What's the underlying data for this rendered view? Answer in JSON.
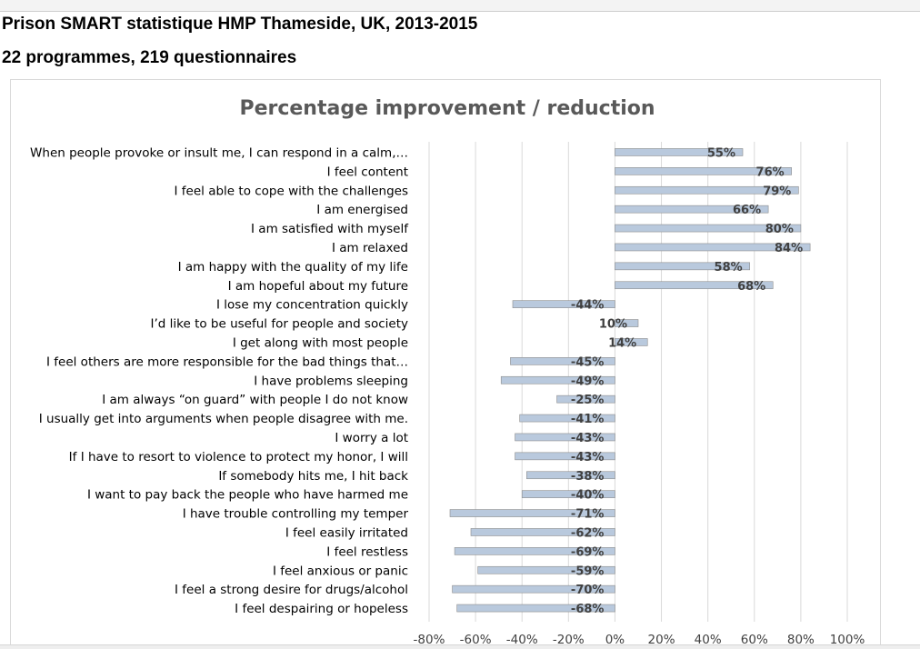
{
  "header": {
    "title": "Prison SMART statistique HMP Thameside, UK, 2013-2015",
    "subtitle": "22 programmes, 219 questionnaires"
  },
  "chart_data": {
    "type": "bar",
    "orientation": "horizontal",
    "title": "Percentage improvement / reduction",
    "xlim": [
      -80,
      100
    ],
    "xticks": [
      -80,
      -60,
      -40,
      -20,
      0,
      20,
      40,
      60,
      80,
      100
    ],
    "tick_suffix": "%",
    "grid": true,
    "legend": "none",
    "bar_color": "#b9c9dd",
    "bar_border": "#8c8c8c",
    "categories": [
      "When people provoke or insult me, I can respond in a calm,…",
      "I feel content",
      "I feel able to cope with the challenges",
      "I am energised",
      "I am satisfied with myself",
      "I am relaxed",
      "I am happy with the quality of my life",
      "I am hopeful about my future",
      "I lose my concentration quickly",
      "I’d like to be useful for people and society",
      "I get along with most people",
      "I feel others are more responsible for the bad things that…",
      "I have problems sleeping",
      "I am always “on guard” with people I do not know",
      "I usually get into arguments when people disagree with me.",
      "I worry a lot",
      "If I have to resort to violence to protect my honor, I will",
      "If somebody hits me, I hit back",
      "I want to pay back the people who have harmed me",
      "I have trouble controlling my temper",
      "I feel easily irritated",
      "I feel restless",
      "I feel anxious or panic",
      "I feel a strong desire for drugs/alcohol",
      "I feel despairing or hopeless"
    ],
    "values": [
      55,
      76,
      79,
      66,
      80,
      84,
      58,
      68,
      -44,
      10,
      14,
      -45,
      -49,
      -25,
      -41,
      -43,
      -43,
      -38,
      -40,
      -71,
      -62,
      -69,
      -59,
      -70,
      -68
    ],
    "labels": [
      "55%",
      "76%",
      "79%",
      "66%",
      "80%",
      "84%",
      "58%",
      "68%",
      "-44%",
      "10%",
      "14%",
      "-45%",
      "-49%",
      "-25%",
      "-41%",
      "-43%",
      "-43%",
      "-38%",
      "-40%",
      "-71%",
      "-62%",
      "-69%",
      "-59%",
      "-70%",
      "-68%"
    ]
  }
}
